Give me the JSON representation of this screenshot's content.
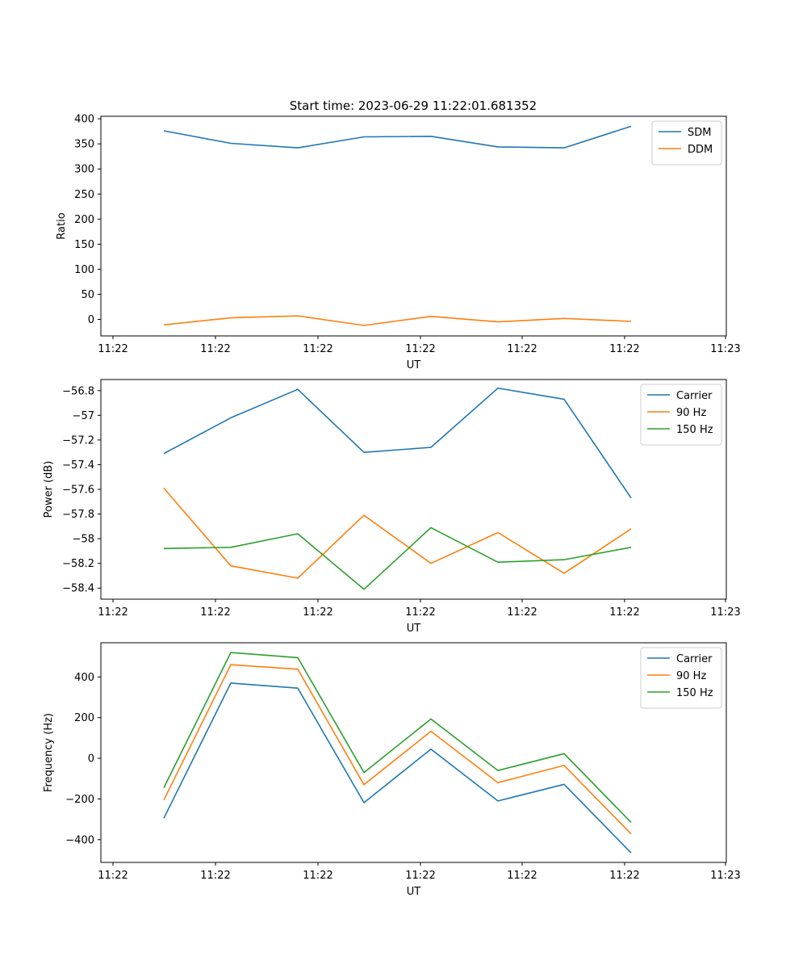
{
  "figure_title": "Start time: 2023-06-29 11:22:01.681352",
  "chart_data": [
    {
      "type": "line",
      "xlabel": "UT",
      "ylabel": "Ratio",
      "xticks": [
        "11:22",
        "11:22",
        "11:22",
        "11:22",
        "11:22",
        "11:22",
        "11:23"
      ],
      "yticks": [
        0,
        50,
        100,
        150,
        200,
        250,
        300,
        350,
        400
      ],
      "ylim": [
        -33,
        405
      ],
      "legend": "top-right",
      "grid": false,
      "series": [
        {
          "name": "SDM",
          "color": "#1f77b4",
          "values": [
            376,
            351,
            342,
            364,
            365,
            344,
            342,
            385
          ]
        },
        {
          "name": "DDM",
          "color": "#ff7f0e",
          "values": [
            -11,
            3,
            7,
            -12,
            6,
            -5,
            2,
            -4
          ]
        }
      ]
    },
    {
      "type": "line",
      "xlabel": "UT",
      "ylabel": "Power (dB)",
      "xticks": [
        "11:22",
        "11:22",
        "11:22",
        "11:22",
        "11:22",
        "11:22",
        "11:23"
      ],
      "yticks": [
        -56.8,
        -57.0,
        -57.2,
        -57.4,
        -57.6,
        -57.8,
        -58.0,
        -58.2,
        -58.4
      ],
      "ylim": [
        -58.49,
        -56.71
      ],
      "legend": "top-right",
      "grid": false,
      "series": [
        {
          "name": "Carrier",
          "color": "#1f77b4",
          "values": [
            -57.31,
            -57.02,
            -56.79,
            -57.3,
            -57.26,
            -56.78,
            -56.87,
            -57.67
          ]
        },
        {
          "name": "90 Hz",
          "color": "#ff7f0e",
          "values": [
            -57.59,
            -58.22,
            -58.32,
            -57.81,
            -58.2,
            -57.95,
            -58.28,
            -57.92
          ]
        },
        {
          "name": "150 Hz",
          "color": "#2ca02c",
          "values": [
            -58.08,
            -58.07,
            -57.96,
            -58.41,
            -57.91,
            -58.19,
            -58.17,
            -58.07
          ]
        }
      ]
    },
    {
      "type": "line",
      "xlabel": "UT",
      "ylabel": "Frequency (Hz)",
      "xticks": [
        "11:22",
        "11:22",
        "11:22",
        "11:22",
        "11:22",
        "11:22",
        "11:23"
      ],
      "yticks": [
        400,
        200,
        0,
        -200,
        -400
      ],
      "ylim": [
        -512,
        568
      ],
      "legend": "top-right",
      "grid": false,
      "series": [
        {
          "name": "Carrier",
          "color": "#1f77b4",
          "values": [
            -295,
            370,
            345,
            -218,
            45,
            -210,
            -128,
            -465
          ]
        },
        {
          "name": "90 Hz",
          "color": "#ff7f0e",
          "values": [
            -205,
            460,
            438,
            -130,
            133,
            -120,
            -35,
            -372
          ]
        },
        {
          "name": "150 Hz",
          "color": "#2ca02c",
          "values": [
            -145,
            520,
            495,
            -70,
            193,
            -60,
            23,
            -315
          ]
        }
      ]
    }
  ]
}
